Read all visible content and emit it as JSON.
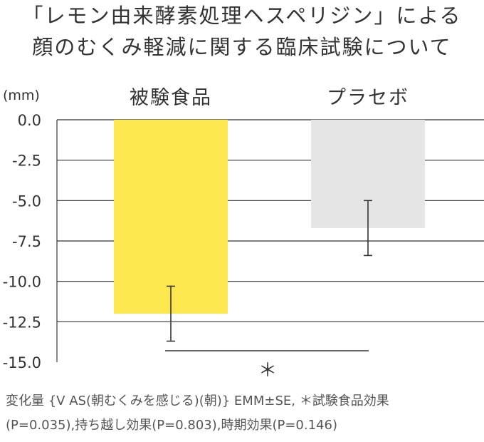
{
  "title_line1": "「レモン由来酵素処理ヘスペリジン」による",
  "title_line2": "顔のむくみ軽減に関する臨床試験について",
  "chart_data": {
    "type": "bar",
    "categories": [
      "被験食品",
      "プラセボ"
    ],
    "values": [
      -12.0,
      -6.7
    ],
    "error": [
      1.7,
      1.7
    ],
    "colors": [
      "#FCE84E",
      "#E5E5E5"
    ],
    "ylabel": "(mm)",
    "ylim": [
      -15.0,
      0.0
    ],
    "yticks": [
      0.0,
      -2.5,
      -5.0,
      -7.5,
      -10.0,
      -12.5,
      -15.0
    ],
    "ytick_labels": [
      "0.0",
      "-2.5",
      "-5.0",
      "-7.5",
      "-10.0",
      "-12.5",
      "-15.0"
    ],
    "grid": true,
    "significance_marker": "＊"
  },
  "footnote_line1": "変化量 {V AS(朝むくみを感じる)(朝)}  EMM±SE, ＊試験食品効果",
  "footnote_line2": "(P=0.035),持ち越し効果(P=0.803),時期効果(P=0.146)"
}
